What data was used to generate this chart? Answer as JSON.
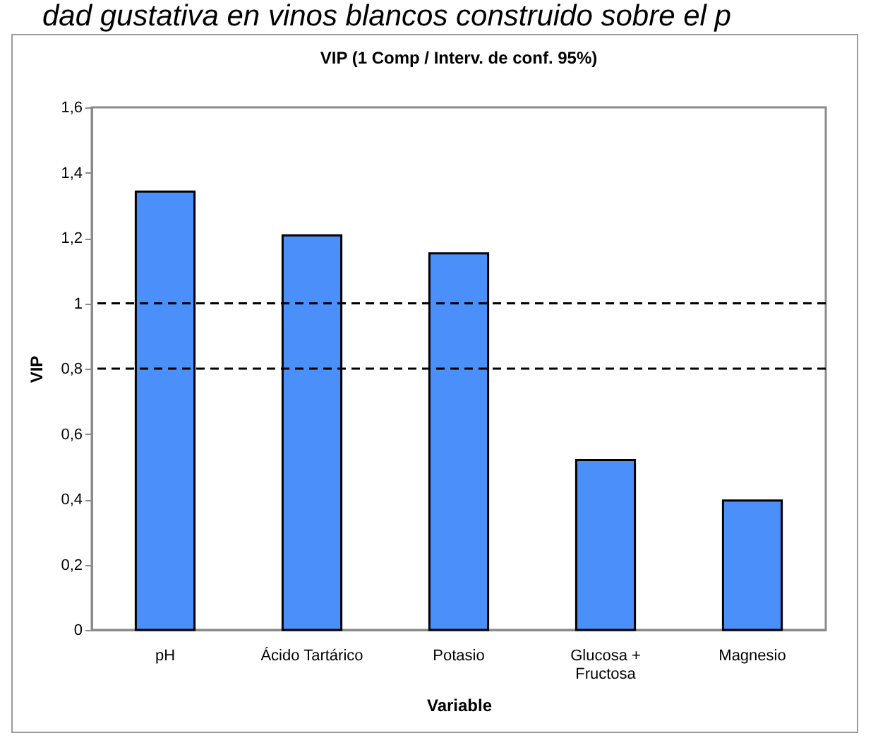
{
  "chart_data": {
    "type": "bar",
    "title": "VIP (1 Comp / Interv. de conf. 95%)",
    "xlabel": "Variable",
    "ylabel": "VIP",
    "annotations": [
      "dad gustativa en vinos blancos construido sobre el p"
    ],
    "categories": [
      "pH",
      "Ácido Tartárico",
      "Potasio",
      "Glucosa + Fructosa",
      "Magnesio"
    ],
    "values": [
      1.342,
      1.208,
      1.153,
      0.52,
      0.396
    ],
    "color": "#4a8ffa",
    "ylim": [
      0,
      1.6
    ],
    "yticks": [
      0,
      {
        "value": 0.2,
        "label": "0,2"
      },
      {
        "value": 0.4,
        "label": "0,4"
      },
      {
        "value": 0.6,
        "label": "0,6"
      },
      {
        "value": 0.8,
        "label": "0,8"
      },
      1,
      {
        "value": 1.2,
        "label": "1,2"
      },
      {
        "value": 1.4,
        "label": "1,4"
      },
      {
        "value": 1.6,
        "label": "1,6"
      }
    ],
    "ref_lines": [
      {
        "axis": "y",
        "value": 1,
        "color": "#000000",
        "line_style": "dashed"
      },
      {
        "axis": "y",
        "value": 0.8,
        "color": "#000000",
        "line_style": "dashed"
      }
    ],
    "grid": false
  }
}
